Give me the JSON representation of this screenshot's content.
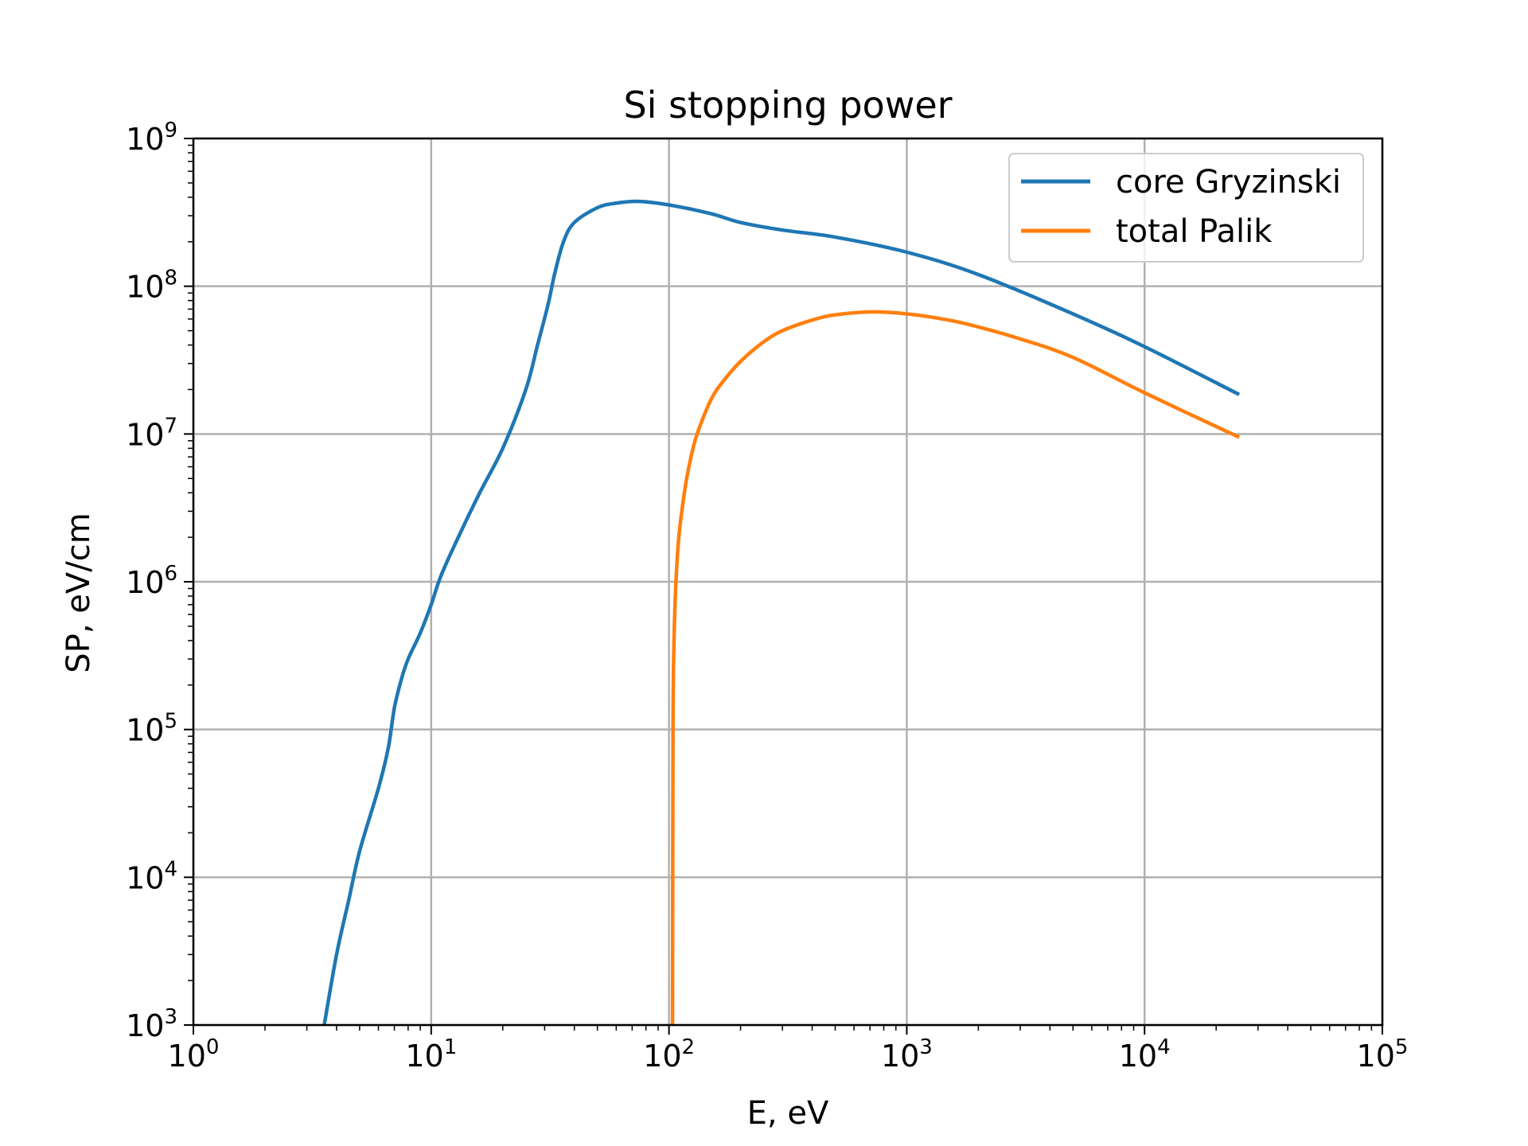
{
  "chart_data": {
    "type": "line",
    "title": "Si stopping power",
    "xlabel": "E, eV",
    "ylabel": "SP, eV/cm",
    "xscale": "log",
    "yscale": "log",
    "xlim": [
      1,
      100000
    ],
    "ylim": [
      1000,
      1000000000
    ],
    "grid": true,
    "legend_position": "top-right",
    "x_ticks": [
      {
        "base": "10",
        "exp": "0",
        "value": 1
      },
      {
        "base": "10",
        "exp": "1",
        "value": 10
      },
      {
        "base": "10",
        "exp": "2",
        "value": 100
      },
      {
        "base": "10",
        "exp": "3",
        "value": 1000
      },
      {
        "base": "10",
        "exp": "4",
        "value": 10000
      },
      {
        "base": "10",
        "exp": "5",
        "value": 100000
      }
    ],
    "y_ticks": [
      {
        "base": "10",
        "exp": "3",
        "value": 1000
      },
      {
        "base": "10",
        "exp": "4",
        "value": 10000
      },
      {
        "base": "10",
        "exp": "5",
        "value": 100000
      },
      {
        "base": "10",
        "exp": "6",
        "value": 1000000
      },
      {
        "base": "10",
        "exp": "7",
        "value": 10000000
      },
      {
        "base": "10",
        "exp": "8",
        "value": 100000000
      },
      {
        "base": "10",
        "exp": "9",
        "value": 1000000000
      }
    ],
    "series": [
      {
        "name": "core Gryzinski",
        "color": "#1f77b4",
        "x": [
          3.55,
          4.0,
          4.5,
          5.0,
          6.0,
          6.6,
          7.0,
          7.5,
          8.0,
          9.0,
          10.0,
          11.0,
          13.0,
          16.0,
          20.0,
          25.0,
          28.0,
          31.0,
          33.0,
          36.0,
          40.0,
          50.0,
          60.0,
          75.0,
          100.0,
          150.0,
          200.0,
          300.0,
          500.0,
          1000.0,
          2000.0,
          5000.0,
          10000.0,
          25000.0
        ],
        "y": [
          1000,
          3000,
          7000,
          15000,
          40000,
          75000,
          140000,
          220000,
          300000,
          450000,
          700000,
          1100000,
          2000000,
          4000000,
          8000000,
          20000000,
          40000000,
          75000000,
          120000000,
          200000000,
          270000000,
          340000000,
          365000000,
          375000000,
          355000000,
          310000000,
          270000000,
          240000000,
          215000000,
          170000000,
          120000000,
          65000000,
          39000000,
          18500000
        ]
      },
      {
        "name": "total Palik",
        "color": "#ff7f0e",
        "x": [
          103.5,
          104.0,
          105.0,
          107.0,
          110.0,
          115.0,
          120.0,
          130.0,
          150.0,
          170.0,
          200.0,
          250.0,
          300.0,
          400.0,
          500.0,
          700.0,
          1000.0,
          1500.0,
          2000.0,
          3000.0,
          5000.0,
          10000.0,
          25000.0
        ],
        "y": [
          1000,
          100000,
          400000,
          1000000,
          2000000,
          3600000,
          5500000,
          9500000,
          17000000,
          23000000,
          31000000,
          42000000,
          50000000,
          59000000,
          64000000,
          67000000,
          65000000,
          59000000,
          53000000,
          44000000,
          33000000,
          19000000,
          9500000
        ]
      }
    ]
  }
}
